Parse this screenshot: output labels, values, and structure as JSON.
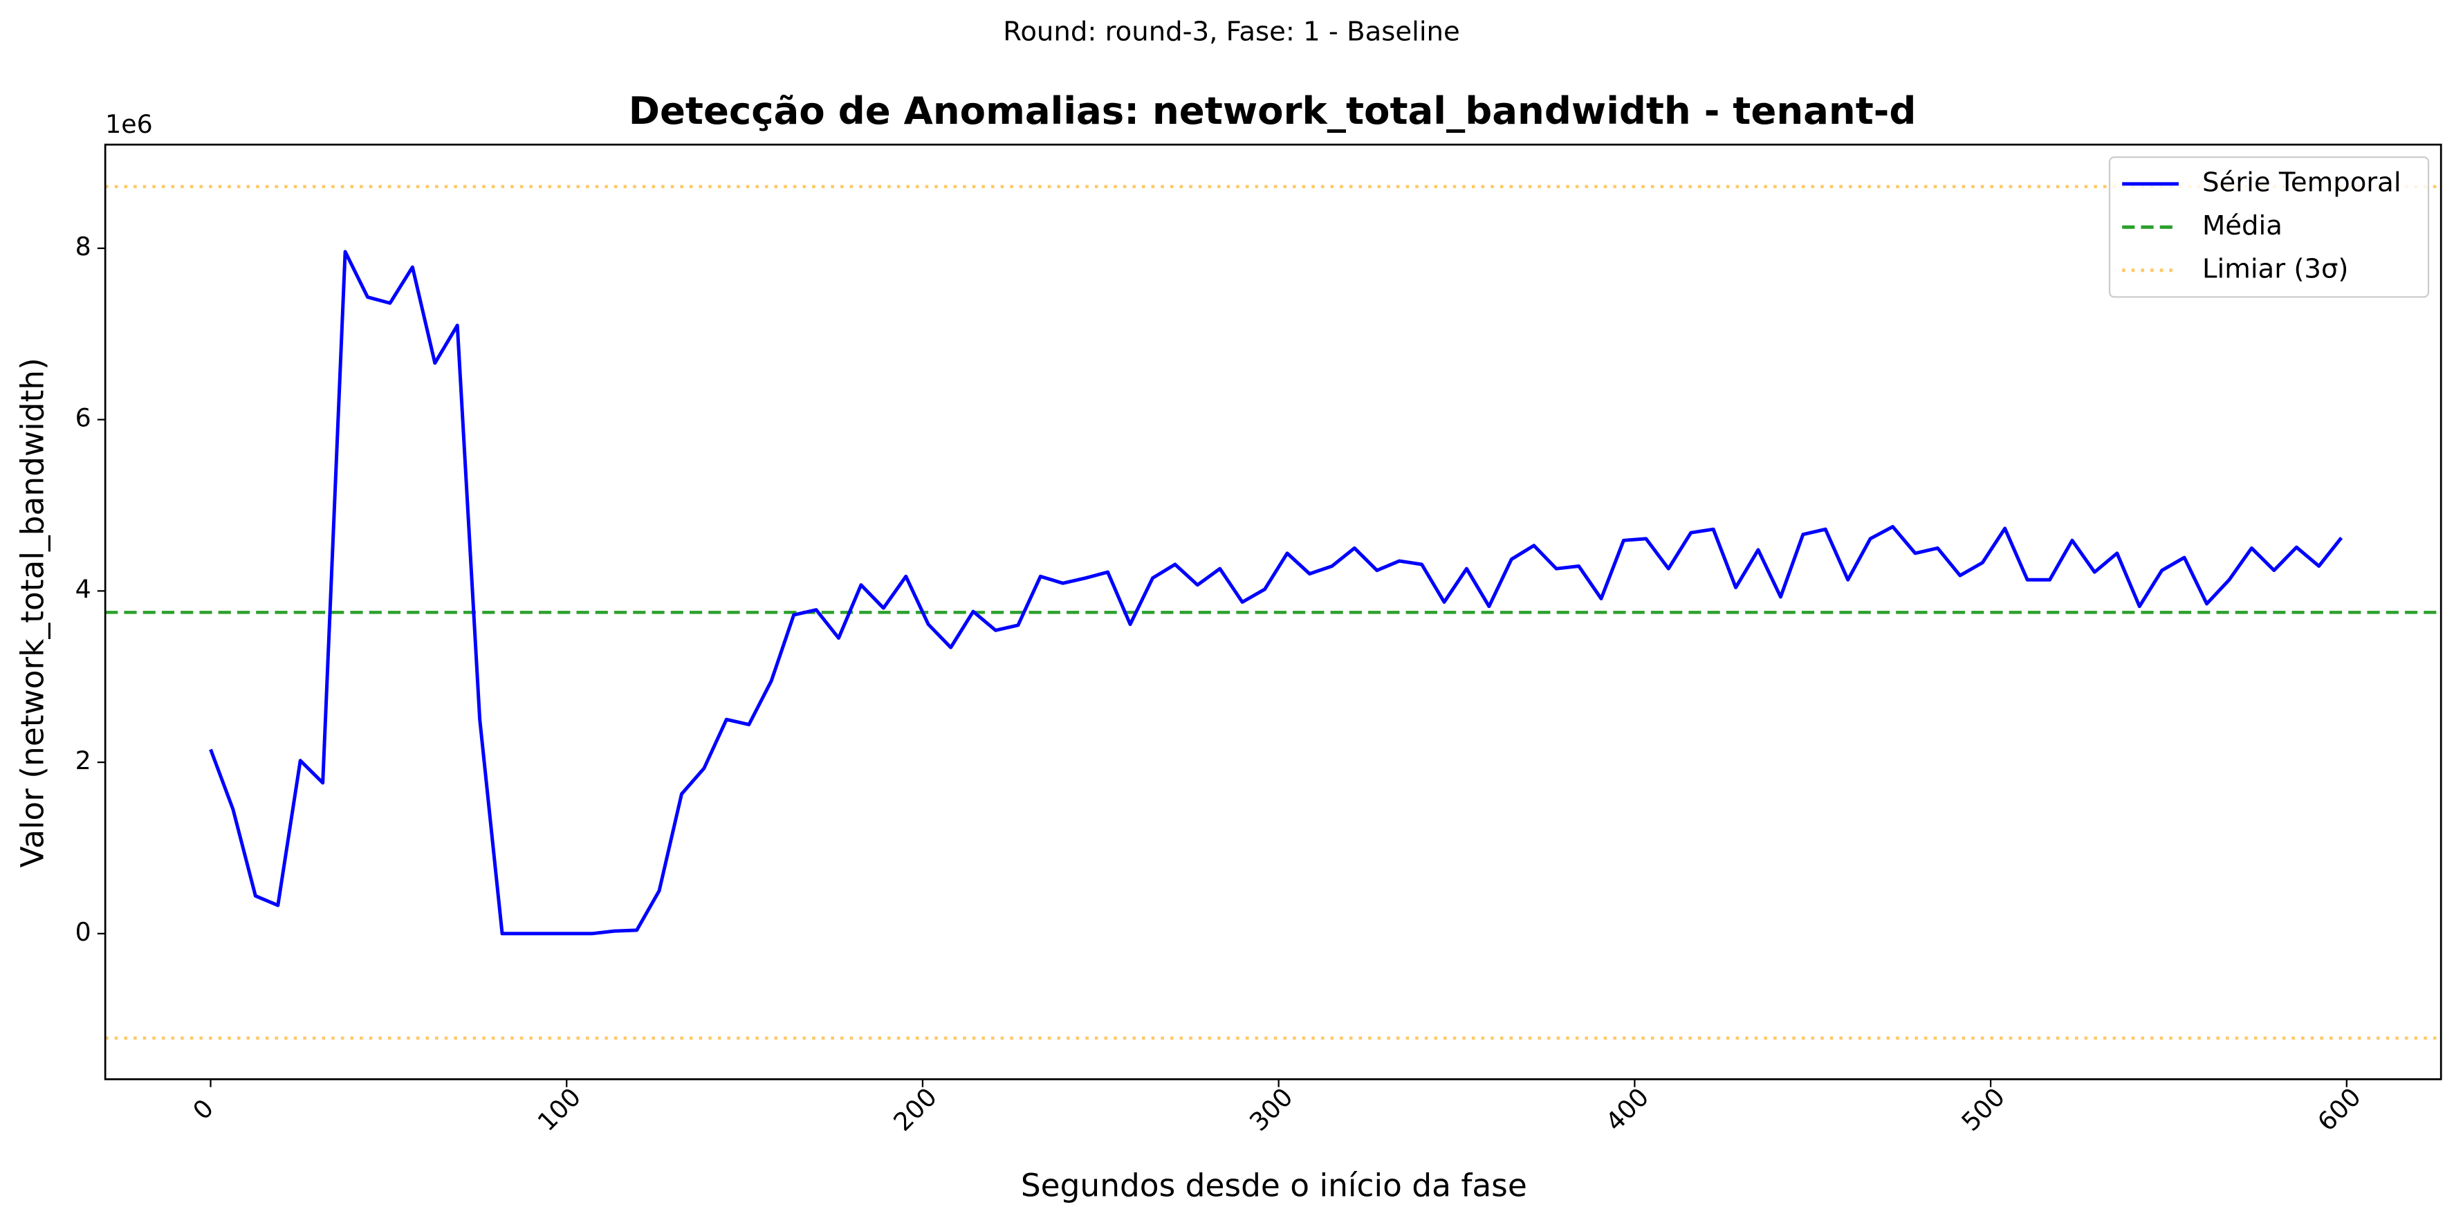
{
  "chart_data": {
    "type": "line",
    "suptitle": "Round: round-3, Fase: 1 - Baseline",
    "title": "Detecção de Anomalias: network_total_bandwidth - tenant-d",
    "xlabel": "Segundos desde o início da fase",
    "ylabel": "Valor (network_total_bandwidth)",
    "y_offset_label": "1e6",
    "x": [
      0,
      6.3,
      12.6,
      18.9,
      25.2,
      31.5,
      37.8,
      44.1,
      50.4,
      56.7,
      63,
      69.3,
      75.6,
      81.9,
      88.2,
      94.5,
      100.8,
      107.1,
      113.4,
      119.7,
      126,
      132.3,
      138.6,
      144.9,
      151.2,
      157.5,
      163.8,
      170.1,
      176.4,
      182.7,
      189,
      195.3,
      201.6,
      207.9,
      214.2,
      220.5,
      226.8,
      233.1,
      239.4,
      245.7,
      252,
      258.3,
      264.6,
      270.9,
      277.2,
      283.5,
      289.8,
      296.1,
      302.4,
      308.7,
      315,
      321.3,
      327.6,
      333.9,
      340.2,
      346.5,
      352.8,
      359.1,
      365.4,
      371.7,
      378,
      384.3,
      390.6,
      396.9,
      403.2,
      409.5,
      415.8,
      422.1,
      428.4,
      434.7,
      441,
      447.3,
      453.6,
      459.9,
      466.2,
      472.5,
      478.8,
      485.1,
      491.4,
      497.7,
      504,
      510.3,
      516.6,
      522.9,
      529.2,
      535.5,
      541.8,
      548.1,
      554.4,
      560.7,
      567,
      573.3,
      579.6,
      585.9,
      592.2,
      598.5
    ],
    "series": [
      {
        "name": "Série Temporal",
        "color": "#0000ff",
        "values": [
          2.15,
          1.45,
          0.44,
          0.33,
          2.02,
          1.76,
          7.96,
          7.43,
          7.36,
          7.78,
          6.66,
          7.1,
          2.5,
          0,
          0,
          0,
          0,
          0,
          0.03,
          0.04,
          0.5,
          1.63,
          1.93,
          2.5,
          2.44,
          2.95,
          3.72,
          3.78,
          3.45,
          4.07,
          3.8,
          4.17,
          3.61,
          3.34,
          3.76,
          3.54,
          3.6,
          4.17,
          4.09,
          4.15,
          4.22,
          3.61,
          4.15,
          4.31,
          4.07,
          4.26,
          3.87,
          4.02,
          4.44,
          4.2,
          4.29,
          4.5,
          4.24,
          4.35,
          4.31,
          3.87,
          4.26,
          3.82,
          4.37,
          4.53,
          4.26,
          4.29,
          3.91,
          4.59,
          4.61,
          4.26,
          4.68,
          4.72,
          4.04,
          4.48,
          3.93,
          4.66,
          4.72,
          4.13,
          4.61,
          4.75,
          4.44,
          4.5,
          4.18,
          4.33,
          4.73,
          4.13,
          4.13,
          4.59,
          4.22,
          4.44,
          3.82,
          4.24,
          4.39,
          3.85,
          4.13,
          4.5,
          4.24,
          4.51,
          4.29,
          4.62
        ]
      }
    ],
    "mean_line": {
      "name": "Média",
      "color": "#2ca02c",
      "value": 3.75
    },
    "threshold_lines": {
      "name": "Limiar (3σ)",
      "color": "#ffa500",
      "values": [
        8.72,
        -1.22
      ]
    },
    "xlim": [
      -29.6,
      626.5
    ],
    "ylim": [
      -1.7,
      9.21
    ],
    "xticks": [
      0,
      100,
      200,
      300,
      400,
      500,
      600
    ],
    "yticks": [
      0,
      2,
      4,
      6,
      8
    ],
    "legend": "upper right"
  }
}
